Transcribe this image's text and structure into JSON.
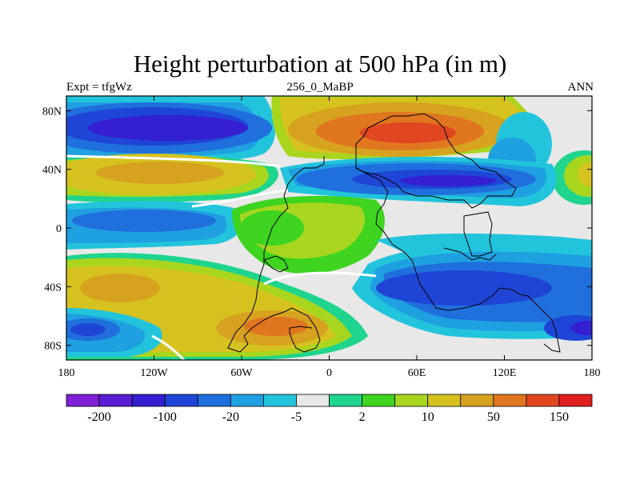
{
  "title": "Height perturbation at 500 hPa (in m)",
  "left_string": "Expt = tfgWz",
  "center_string": "256_0_MaBP",
  "right_string": "ANN",
  "x_ticks": [
    {
      "value": -180,
      "label": "180"
    },
    {
      "value": -120,
      "label": "120W"
    },
    {
      "value": -60,
      "label": "60W"
    },
    {
      "value": 0,
      "label": "0"
    },
    {
      "value": 60,
      "label": "60E"
    },
    {
      "value": 120,
      "label": "120E"
    },
    {
      "value": 180,
      "label": "180"
    }
  ],
  "y_ticks": [
    {
      "value": 80,
      "label": "80N"
    },
    {
      "value": 40,
      "label": "40N"
    },
    {
      "value": 0,
      "label": "0"
    },
    {
      "value": -40,
      "label": "40S"
    },
    {
      "value": -80,
      "label": "80S"
    }
  ],
  "map": {
    "type": "filled-contour",
    "lon_range": [
      -180,
      180
    ],
    "lat_range": [
      -90,
      90
    ]
  },
  "colorbar": {
    "colors": [
      "#7f1fd6",
      "#5a1fd3",
      "#3420d0",
      "#1f45d6",
      "#1f6fdd",
      "#1fa0e0",
      "#22c4dc",
      "#e8e8e8",
      "#1fd48c",
      "#3ed41f",
      "#a8d61f",
      "#d6c21f",
      "#d6a21f",
      "#e0761f",
      "#e0461f",
      "#e01f1f"
    ],
    "labels": [
      {
        "boundary": 1,
        "text": "-200"
      },
      {
        "boundary": 3,
        "text": "-100"
      },
      {
        "boundary": 5,
        "text": "-20"
      },
      {
        "boundary": 7,
        "text": "-5"
      },
      {
        "boundary": 9,
        "text": "2"
      },
      {
        "boundary": 11,
        "text": "10"
      },
      {
        "boundary": 13,
        "text": "50"
      },
      {
        "boundary": 15,
        "text": "150"
      }
    ]
  }
}
